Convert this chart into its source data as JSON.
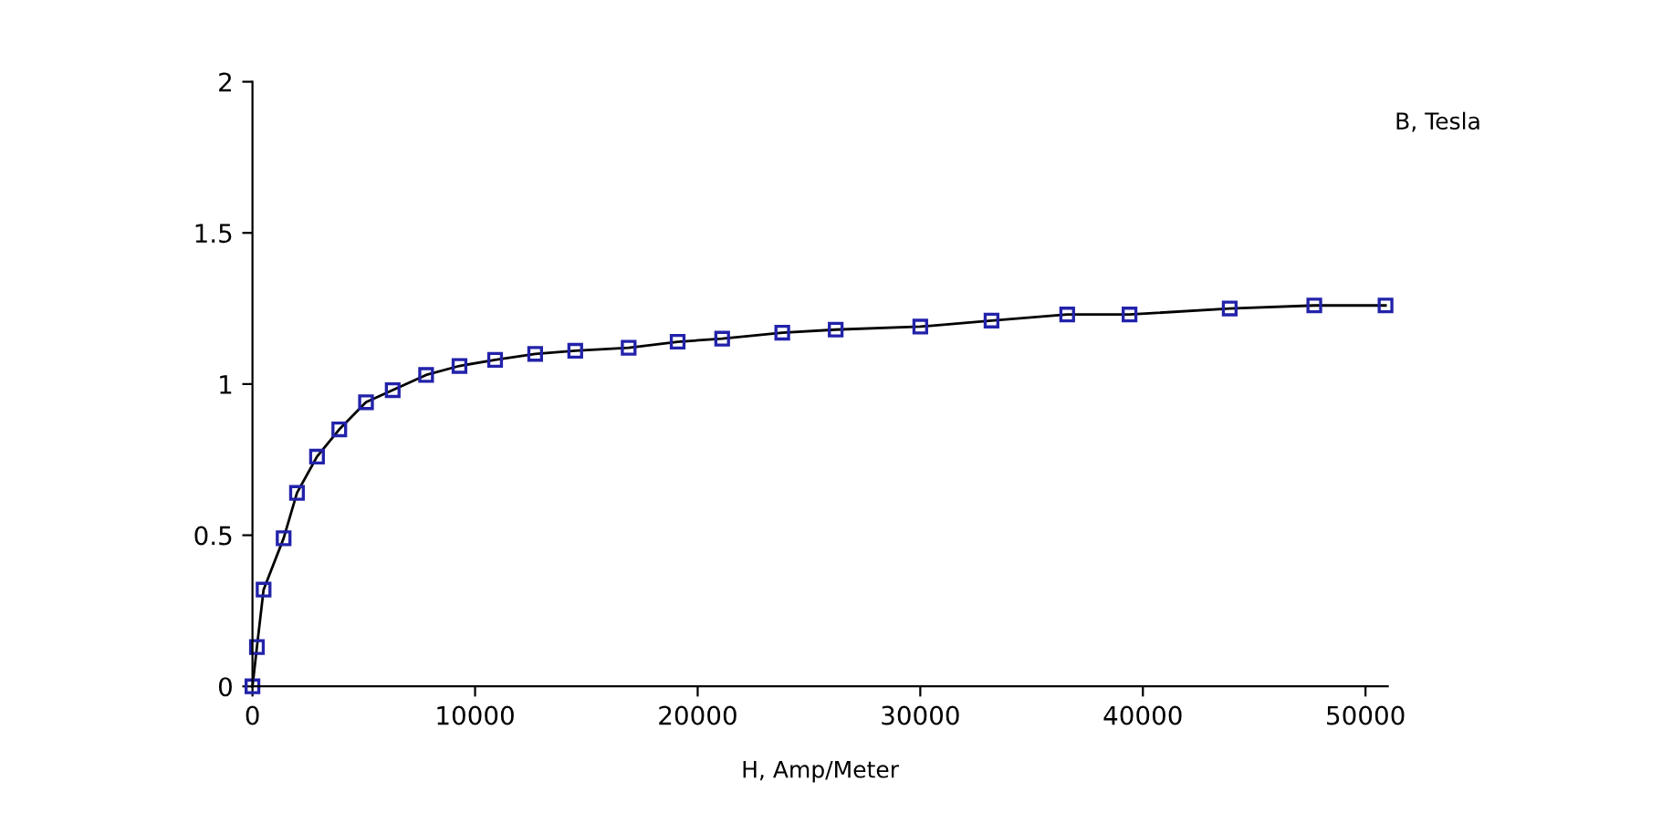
{
  "chart_data": {
    "type": "line",
    "xlabel": "H, Amp/Meter",
    "ylabel": "B, Tesla",
    "xlim": [
      0,
      51000
    ],
    "ylim": [
      0,
      2
    ],
    "xticks": [
      0,
      10000,
      20000,
      30000,
      40000,
      50000
    ],
    "yticks": [
      0,
      0.5,
      1,
      1.5,
      2
    ],
    "grid": false,
    "legend": false,
    "marker": "square",
    "line_style": "solid",
    "series": [
      {
        "color": "#2222aa",
        "x": [
          0,
          200,
          500,
          1400,
          2000,
          2900,
          3900,
          5100,
          6300,
          7800,
          9300,
          10900,
          12700,
          14500,
          16900,
          19100,
          21100,
          23800,
          26200,
          30000,
          33200,
          36600,
          39400,
          43900,
          47700,
          50900
        ],
        "values": [
          0,
          0.13,
          0.32,
          0.49,
          0.64,
          0.76,
          0.85,
          0.94,
          0.98,
          1.03,
          1.06,
          1.08,
          1.1,
          1.11,
          1.12,
          1.14,
          1.15,
          1.17,
          1.18,
          1.19,
          1.21,
          1.23,
          1.23,
          1.25,
          1.26,
          1.26
        ]
      }
    ]
  }
}
